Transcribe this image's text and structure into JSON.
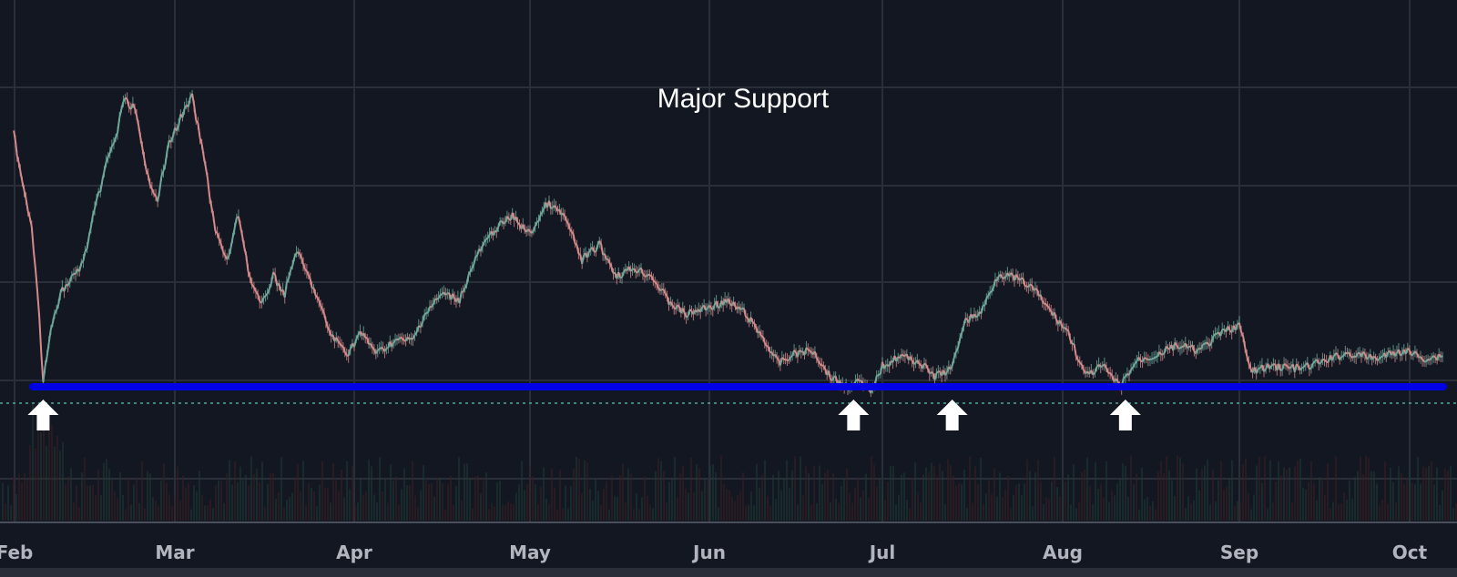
{
  "chart_data": {
    "type": "candlestick",
    "annotation": "Major Support",
    "x_ticks": [
      "Feb",
      "Mar",
      "Apr",
      "May",
      "Jun",
      "Jul",
      "Aug",
      "Sep",
      "Oct"
    ],
    "support_level": 100,
    "ylim": [
      94,
      232
    ],
    "series": [
      {
        "type": "close_path",
        "points": [
          [
            "Jan 31",
            198
          ],
          [
            "Feb 2",
            184
          ],
          [
            "Feb 4",
            162
          ],
          [
            "Feb 5",
            138
          ],
          [
            "Feb 6",
            101
          ],
          [
            "Feb 7",
            118
          ],
          [
            "Feb 9",
            136
          ],
          [
            "Feb 11",
            142
          ],
          [
            "Feb 13",
            148
          ],
          [
            "Feb 15",
            168
          ],
          [
            "Feb 17",
            186
          ],
          [
            "Feb 19",
            199
          ],
          [
            "Feb 20",
            211
          ],
          [
            "Feb 22",
            208
          ],
          [
            "Feb 24",
            183
          ],
          [
            "Feb 26",
            173
          ],
          [
            "Feb 28",
            194
          ],
          [
            "Mar 2",
            204
          ],
          [
            "Mar 4",
            212
          ],
          [
            "Mar 6",
            189
          ],
          [
            "Mar 8",
            161
          ],
          [
            "Mar 10",
            148
          ],
          [
            "Mar 12",
            167
          ],
          [
            "Mar 14",
            142
          ],
          [
            "Mar 16",
            131
          ],
          [
            "Mar 18",
            143
          ],
          [
            "Mar 20",
            136
          ],
          [
            "Mar 22",
            153
          ],
          [
            "Mar 25",
            138
          ],
          [
            "Mar 28",
            120
          ],
          [
            "Mar 31",
            113
          ],
          [
            "Apr 2",
            121
          ],
          [
            "Apr 5",
            113
          ],
          [
            "Apr 8",
            118
          ],
          [
            "Apr 11",
            118
          ],
          [
            "Apr 13",
            128
          ],
          [
            "Apr 16",
            136
          ],
          [
            "Apr 19",
            134
          ],
          [
            "Apr 22",
            151
          ],
          [
            "Apr 25",
            161
          ],
          [
            "Apr 28",
            166
          ],
          [
            "May 1",
            159
          ],
          [
            "May 4",
            171
          ],
          [
            "May 7",
            166
          ],
          [
            "May 10",
            149
          ],
          [
            "May 13",
            155
          ],
          [
            "May 16",
            143
          ],
          [
            "May 19",
            146
          ],
          [
            "May 22",
            143
          ],
          [
            "May 25",
            133
          ],
          [
            "May 28",
            128
          ],
          [
            "Jun 1",
            131
          ],
          [
            "Jun 4",
            133
          ],
          [
            "Jun 7",
            129
          ],
          [
            "Jun 10",
            120
          ],
          [
            "Jun 13",
            109
          ],
          [
            "Jun 16",
            113
          ],
          [
            "Jun 19",
            114
          ],
          [
            "Jun 22",
            104
          ],
          [
            "Jun 25",
            100
          ],
          [
            "Jun 27",
            102
          ],
          [
            "Jun 29",
            98
          ],
          [
            "Jul 1",
            108
          ],
          [
            "Jul 4",
            112
          ],
          [
            "Jul 7",
            110
          ],
          [
            "Jul 10",
            104
          ],
          [
            "Jul 13",
            107
          ],
          [
            "Jul 15",
            125
          ],
          [
            "Jul 18",
            129
          ],
          [
            "Jul 21",
            144
          ],
          [
            "Jul 24",
            142
          ],
          [
            "Jul 27",
            138
          ],
          [
            "Jul 30",
            129
          ],
          [
            "Aug 2",
            121
          ],
          [
            "Aug 5",
            104
          ],
          [
            "Aug 8",
            108
          ],
          [
            "Aug 11",
            100
          ],
          [
            "Aug 14",
            110
          ],
          [
            "Aug 17",
            112
          ],
          [
            "Aug 21",
            116
          ],
          [
            "Aug 25",
            114
          ],
          [
            "Aug 29",
            121
          ],
          [
            "Sep 1",
            124
          ],
          [
            "Sep 3",
            106
          ],
          [
            "Sep 7",
            108
          ],
          [
            "Sep 12",
            107
          ],
          [
            "Sep 16",
            110
          ],
          [
            "Sep 20",
            113
          ],
          [
            "Sep 25",
            111
          ],
          [
            "Sep 30",
            114
          ],
          [
            "Oct 4",
            111
          ],
          [
            "Oct 7",
            112
          ]
        ]
      }
    ],
    "grid": true,
    "colors": {
      "background": "#131722",
      "grid": "#2a2e39",
      "support_line": "#0000e8",
      "dotted_line": "#4fa89a",
      "up": "#6fa89a",
      "down": "#d48a8a",
      "arrow": "#ffffff",
      "axis_text": "#b2b5be"
    },
    "support_touches": [
      "Feb 6",
      "Jun 26",
      "Jul 13",
      "Aug 12"
    ]
  }
}
